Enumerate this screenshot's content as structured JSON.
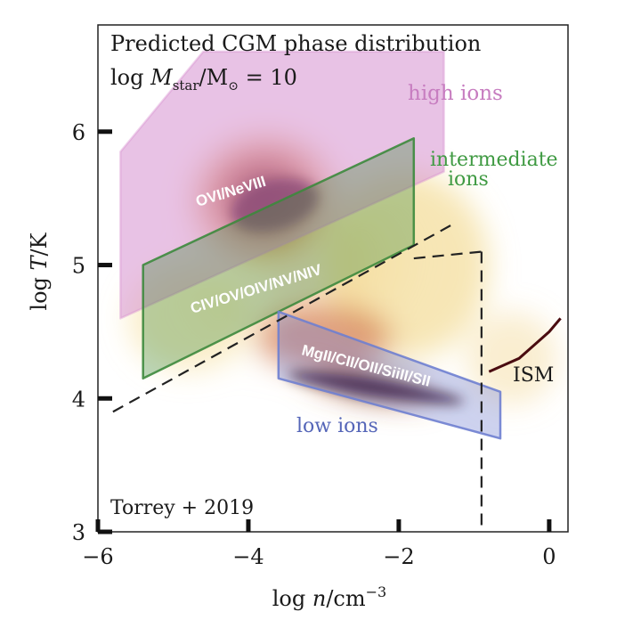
{
  "chart_data": {
    "type": "scatter",
    "subtype": "2d-histogram-phase-diagram",
    "title_line1": "Predicted CGM phase distribution",
    "title_line2_prefix": "log ",
    "title_line2_var": "M",
    "title_line2_sub": "star",
    "title_line2_mid": "/M",
    "title_line2_sun": "⊙",
    "title_line2_suffix": " = 10",
    "xlabel_prefix": "log ",
    "xlabel_var": "n",
    "xlabel_unit": "/cm",
    "xlabel_exp": "−3",
    "ylabel_prefix": "log ",
    "ylabel_var": "T",
    "ylabel_unit": "/K",
    "xlim": [
      -6,
      0.25
    ],
    "ylim": [
      3,
      6.8
    ],
    "xticks": [
      -6,
      -4,
      -2,
      0
    ],
    "xtick_labels": [
      "−6",
      "−4",
      "−2",
      "0"
    ],
    "yticks": [
      3,
      4,
      5,
      6
    ],
    "ytick_labels": [
      "3",
      "4",
      "5",
      "6"
    ],
    "credit": "Torrey +  2019",
    "ion_regions": [
      {
        "name": "high ions",
        "label": "high ions",
        "species": "OVI/NeVIII",
        "color": "#d68fcf",
        "polygon": [
          [
            -5.7,
            5.85
          ],
          [
            -4.6,
            6.6
          ],
          [
            -1.4,
            6.6
          ],
          [
            -1.4,
            5.7
          ],
          [
            -5.7,
            4.6
          ]
        ]
      },
      {
        "name": "intermediate ions",
        "label_line1": "intermediate",
        "label_line2": "ions",
        "species": "CIV/OV/OIV/NV/NIV",
        "color": "#3d8a3d",
        "polygon": [
          [
            -5.4,
            5.0
          ],
          [
            -1.8,
            5.95
          ],
          [
            -1.8,
            5.15
          ],
          [
            -5.4,
            4.15
          ]
        ]
      },
      {
        "name": "low ions",
        "label": "low ions",
        "species": "MgII/CII/OII/SiiII/SII",
        "color": "#6f7fd0",
        "polygon": [
          [
            -3.6,
            4.65
          ],
          [
            -0.65,
            4.05
          ],
          [
            -0.65,
            3.7
          ],
          [
            -3.6,
            4.15
          ]
        ]
      }
    ],
    "dashed_lines": [
      {
        "name": "temperature-density cut",
        "points": [
          [
            -5.8,
            3.9
          ],
          [
            -1.3,
            5.3
          ]
        ]
      },
      {
        "name": "density cut",
        "points": [
          [
            -0.9,
            5.1
          ],
          [
            -0.9,
            3.0
          ]
        ]
      },
      {
        "name": "connector",
        "points": [
          [
            -1.8,
            5.05
          ],
          [
            -0.9,
            5.1
          ]
        ]
      }
    ],
    "ism_curve": {
      "label": "ISM",
      "points": [
        [
          -0.8,
          4.2
        ],
        [
          -0.6,
          4.25
        ],
        [
          -0.4,
          4.3
        ],
        [
          -0.2,
          4.4
        ],
        [
          0.0,
          4.5
        ],
        [
          0.15,
          4.6
        ]
      ]
    },
    "hot_spots": [
      {
        "name": "warm-hot peak",
        "x": -3.8,
        "y": 5.5,
        "sx": 1.1,
        "sy": 0.55,
        "w": 1.0
      },
      {
        "name": "cool peak",
        "x": -2.4,
        "y": 4.1,
        "sx": 1.0,
        "sy": 0.12,
        "w": 0.95
      },
      {
        "name": "broad halo",
        "x": -3.3,
        "y": 4.95,
        "sx": 1.9,
        "sy": 0.8,
        "w": 0.35
      }
    ]
  }
}
